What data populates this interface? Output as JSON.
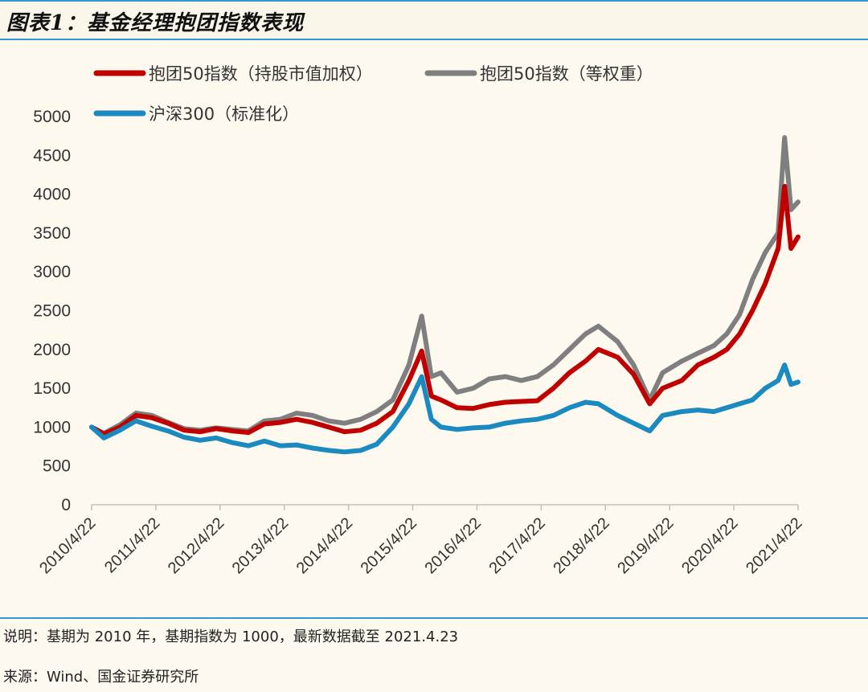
{
  "header": {
    "title": "图表1：基金经理抱团指数表现"
  },
  "footer": {
    "note": "说明：基期为 2010 年，基期指数为 1000，最新数据截至 2021.4.23",
    "source": "来源：Wind、国金证券研究所"
  },
  "chart_data": {
    "type": "line",
    "title": "",
    "xlabel": "",
    "ylabel": "",
    "ylim": [
      0,
      5000
    ],
    "y_ticks": [
      0,
      500,
      1000,
      1500,
      2000,
      2500,
      3000,
      3500,
      4000,
      4500,
      5000
    ],
    "x_tick_labels": [
      "2010/4/22",
      "2011/4/22",
      "2012/4/22",
      "2013/4/22",
      "2014/4/22",
      "2015/4/22",
      "2016/4/22",
      "2017/4/22",
      "2018/4/22",
      "2019/4/22",
      "2020/4/22",
      "2021/4/22"
    ],
    "grid": false,
    "legend_position": "top",
    "x": [
      2010.31,
      2010.5,
      2010.75,
      2011.0,
      2011.25,
      2011.5,
      2011.75,
      2012.0,
      2012.25,
      2012.5,
      2012.75,
      2013.0,
      2013.25,
      2013.5,
      2013.75,
      2014.0,
      2014.25,
      2014.5,
      2014.75,
      2015.0,
      2015.25,
      2015.45,
      2015.6,
      2015.75,
      2016.0,
      2016.25,
      2016.5,
      2016.75,
      2017.0,
      2017.25,
      2017.5,
      2017.75,
      2018.0,
      2018.2,
      2018.5,
      2018.75,
      2019.0,
      2019.2,
      2019.5,
      2019.75,
      2020.0,
      2020.2,
      2020.4,
      2020.6,
      2020.8,
      2021.0,
      2021.1,
      2021.2,
      2021.31
    ],
    "series": [
      {
        "name": "抱团50指数（持股市值加权）",
        "color": "#c00000",
        "values": [
          1000,
          910,
          1000,
          1150,
          1120,
          1050,
          960,
          940,
          980,
          950,
          930,
          1040,
          1060,
          1100,
          1060,
          1000,
          940,
          960,
          1050,
          1200,
          1600,
          1980,
          1400,
          1350,
          1250,
          1240,
          1290,
          1320,
          1330,
          1340,
          1500,
          1700,
          1850,
          2000,
          1900,
          1680,
          1300,
          1500,
          1600,
          1800,
          1900,
          2000,
          2200,
          2500,
          2850,
          3300,
          4100,
          3300,
          3450
        ]
      },
      {
        "name": "抱团50指数（等权重）",
        "color": "#7f7f7f",
        "values": [
          1000,
          920,
          1030,
          1180,
          1150,
          1060,
          980,
          960,
          990,
          970,
          950,
          1080,
          1100,
          1180,
          1150,
          1080,
          1050,
          1100,
          1200,
          1350,
          1800,
          2430,
          1650,
          1700,
          1450,
          1500,
          1620,
          1650,
          1600,
          1650,
          1800,
          2000,
          2200,
          2300,
          2100,
          1800,
          1350,
          1700,
          1850,
          1950,
          2050,
          2200,
          2450,
          2900,
          3250,
          3500,
          4730,
          3800,
          3900
        ]
      },
      {
        "name": "沪深300（标准化）",
        "color": "#1a8ac0",
        "values": [
          1000,
          860,
          960,
          1080,
          1010,
          950,
          870,
          830,
          860,
          800,
          760,
          820,
          760,
          770,
          730,
          700,
          680,
          700,
          780,
          1000,
          1300,
          1650,
          1100,
          1000,
          970,
          990,
          1000,
          1050,
          1080,
          1100,
          1150,
          1250,
          1320,
          1300,
          1150,
          1050,
          950,
          1150,
          1200,
          1220,
          1200,
          1250,
          1300,
          1350,
          1500,
          1600,
          1800,
          1550,
          1580
        ]
      }
    ]
  }
}
